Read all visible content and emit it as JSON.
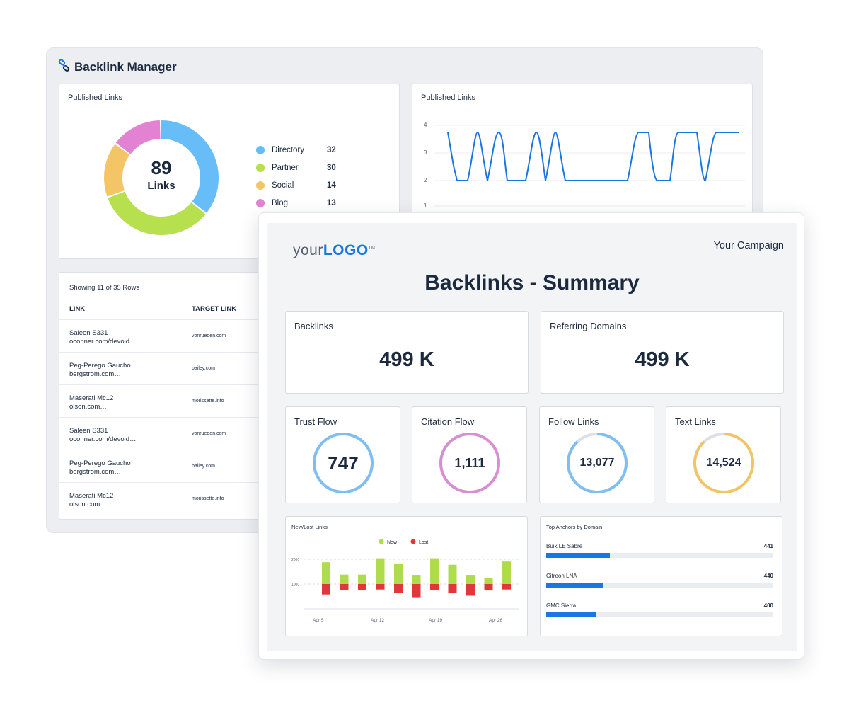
{
  "backlink_manager": {
    "title": "Backlink Manager",
    "icon": "link-icon",
    "donut_card": {
      "title": "Published Links",
      "center_value": "89",
      "center_label": "Links",
      "legend": [
        {
          "name": "Directory",
          "value": "32",
          "color": "#67bdf7"
        },
        {
          "name": "Partner",
          "value": "30",
          "color": "#b6e04e"
        },
        {
          "name": "Social",
          "value": "14",
          "color": "#f4c566"
        },
        {
          "name": "Blog",
          "value": "13",
          "color": "#e381d3"
        }
      ]
    },
    "line_card": {
      "title": "Published Links",
      "line_color": "#1877e0",
      "y_ticks": [
        "4",
        "3",
        "2",
        "1"
      ]
    },
    "table": {
      "showing": "Showing 11 of 35 Rows",
      "columns": [
        "LINK",
        "TARGET LINK"
      ],
      "rows": [
        {
          "name": "Saleen S331",
          "url": "oconner.com/devoid…",
          "target": "vonrueden.com"
        },
        {
          "name": "Peg-Perego Gaucho",
          "url": "bergstrom.com…",
          "target": "bailey.com"
        },
        {
          "name": "Maserati Mc12",
          "url": "olson.com…",
          "target": "morissette.info"
        },
        {
          "name": "Saleen S331",
          "url": "oconner.com/devoid…",
          "target": "vonrueden.com"
        },
        {
          "name": "Peg-Perego Gaucho",
          "url": "bergstrom.com…",
          "target": "bailey.com"
        },
        {
          "name": "Maserati Mc12",
          "url": "olson.com…",
          "target": "morissette.info"
        }
      ]
    }
  },
  "report": {
    "logo_your": "your",
    "logo_logo": "LOGO",
    "logo_tm": "TM",
    "campaign": "Your Campaign",
    "title": "Backlinks - Summary",
    "kpis": [
      {
        "label": "Backlinks",
        "value": "499 K"
      },
      {
        "label": "Referring Domains",
        "value": "499 K"
      }
    ],
    "rings": [
      {
        "label": "Trust Flow",
        "value": "747",
        "color": "#7fbef3",
        "fill": 1.0
      },
      {
        "label": "Citation Flow",
        "value": "1,111",
        "color": "#d98ed4",
        "fill": 1.0
      },
      {
        "label": "Follow Links",
        "value": "13,077",
        "color": "#7fbef3",
        "fill": 0.88
      },
      {
        "label": "Text Links",
        "value": "14,524",
        "color": "#f2c464",
        "fill": 0.88
      }
    ],
    "new_lost": {
      "title": "New/Lost Links",
      "legend_new": "New",
      "legend_lost": "Lost",
      "color_new": "#aedc4d",
      "color_lost": "#e0373b",
      "y_ticks": [
        "2000",
        "1000"
      ],
      "x_ticks": [
        "Apr 5",
        "Apr 12",
        "Apr 19",
        "Apr 26"
      ]
    },
    "anchors": {
      "title": "Top Anchors by Domain",
      "bar_color": "#1877e0",
      "items": [
        {
          "name": "Buik LE Sabre",
          "value": "441",
          "fill": 0.28
        },
        {
          "name": "Citreon LNA",
          "value": "440",
          "fill": 0.25
        },
        {
          "name": "GMC Sierra",
          "value": "400",
          "fill": 0.22
        }
      ]
    }
  }
}
